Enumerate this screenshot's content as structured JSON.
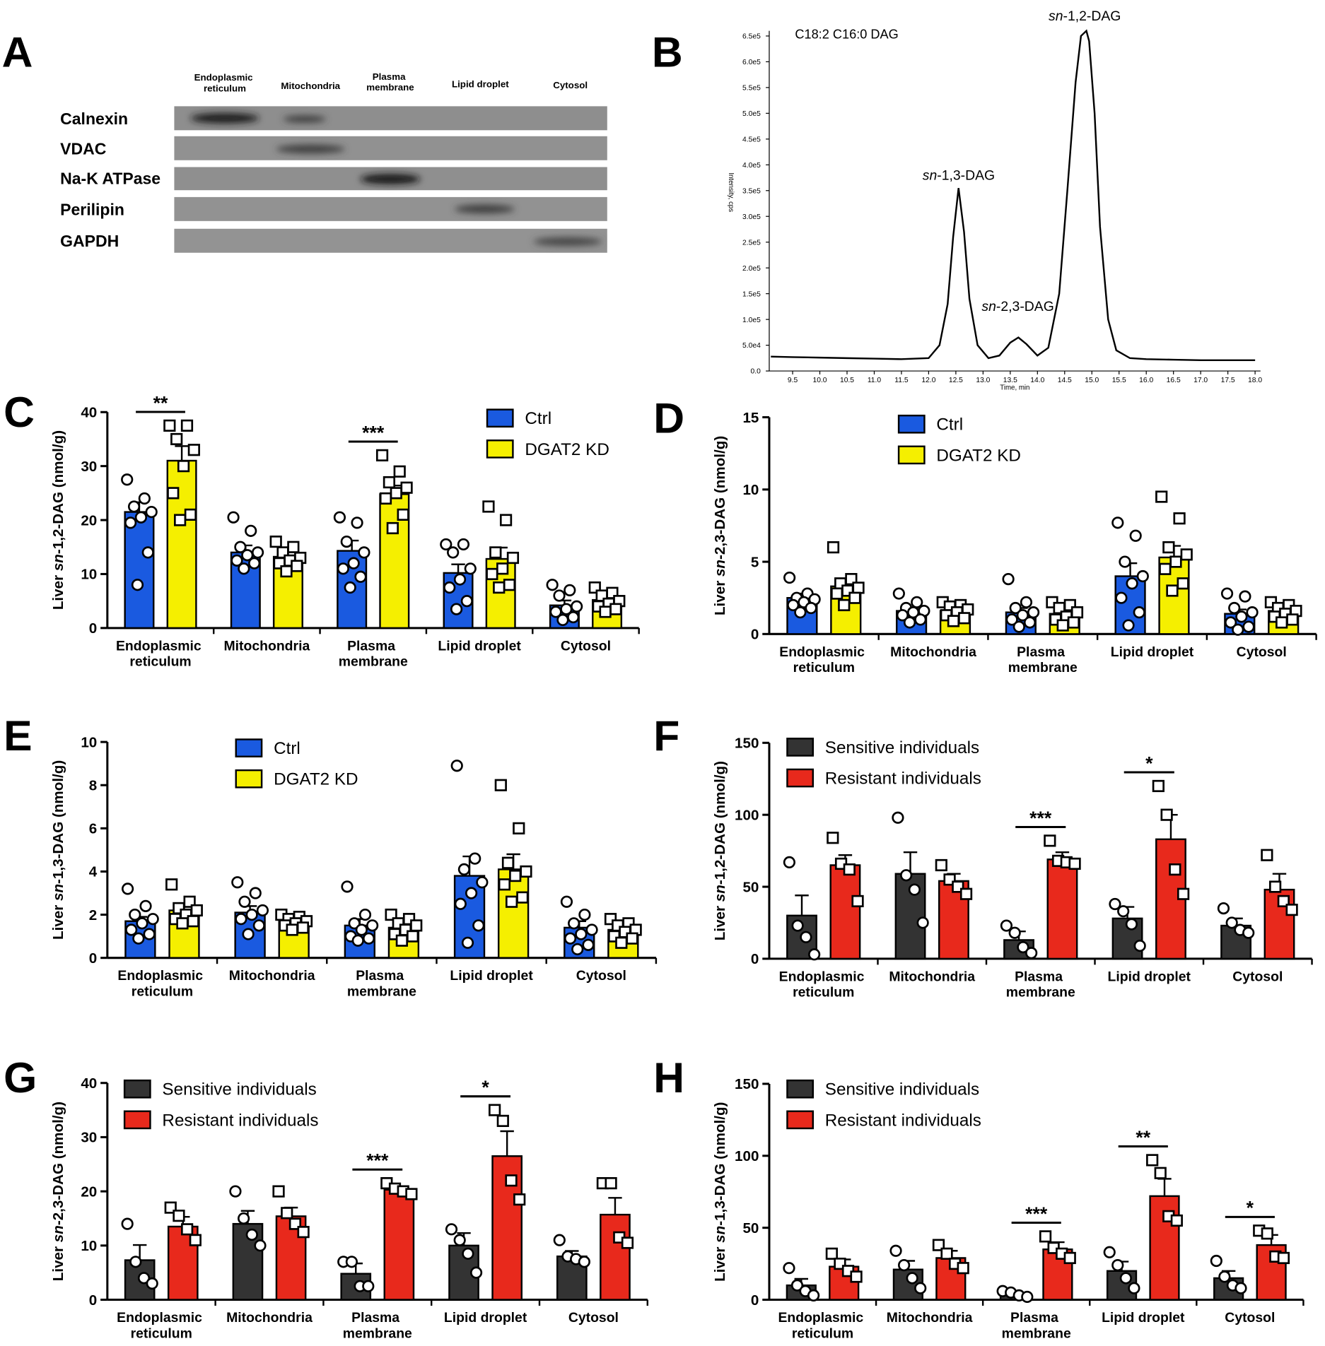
{
  "blot": {
    "panel": "A",
    "columns": [
      "Endoplasmic\nreticulum",
      "Mitochondria",
      "Plasma\nmembrane",
      "Lipid droplet",
      "Cytosol"
    ],
    "rows": [
      "Calnexin",
      "VDAC",
      "Na-K ATPase",
      "Perilipin",
      "GAPDH"
    ]
  },
  "chart_data": [
    {
      "panel": "B",
      "type": "line",
      "title": "C18:2 C16:0 DAG",
      "x_label": "Time, min",
      "y_label": "Intensity, cps",
      "annotations": [
        "sn-1,3-DAG",
        "sn-2,3-DAG",
        "sn-1,2-DAG"
      ],
      "color": "#000000",
      "x": [
        9.1,
        9.5,
        10.0,
        10.5,
        11.0,
        11.5,
        12.0,
        12.2,
        12.35,
        12.45,
        12.55,
        12.65,
        12.75,
        12.9,
        13.1,
        13.3,
        13.5,
        13.65,
        13.8,
        14.0,
        14.2,
        14.4,
        14.55,
        14.7,
        14.8,
        14.9,
        14.95,
        15.05,
        15.15,
        15.3,
        15.45,
        15.7,
        16.0,
        16.5,
        17.0,
        17.5,
        18.0
      ],
      "y": [
        28000,
        27000,
        26000,
        25000,
        24000,
        23000,
        25000,
        50000,
        130000,
        260000,
        355000,
        270000,
        140000,
        50000,
        25000,
        30000,
        55000,
        65000,
        52000,
        30000,
        45000,
        150000,
        350000,
        560000,
        650000,
        660000,
        640000,
        500000,
        280000,
        100000,
        40000,
        25000,
        23000,
        22000,
        21000,
        21000,
        21000
      ],
      "xlim": [
        9.07,
        18.1
      ],
      "ylim": [
        0,
        660000
      ],
      "xticks": [
        9.5,
        {
          "value": 10,
          "label": "10.0"
        },
        10.5,
        {
          "value": 11,
          "label": "11.0"
        },
        11.5,
        {
          "value": 12,
          "label": "12.0"
        },
        12.5,
        {
          "value": 13,
          "label": "13.0"
        },
        13.5,
        {
          "value": 14,
          "label": "14.0"
        },
        14.5,
        {
          "value": 15,
          "label": "15.0"
        },
        15.5,
        {
          "value": 16,
          "label": "16.0"
        },
        16.5,
        {
          "value": 17,
          "label": "17.0"
        },
        17.5,
        {
          "value": 18,
          "label": "18.0"
        }
      ],
      "yticks": [
        {
          "value": 0,
          "label": "0.0"
        },
        {
          "value": 50000,
          "label": "5.0e4"
        },
        {
          "value": 100000,
          "label": "1.0e5"
        },
        {
          "value": 150000,
          "label": "1.5e5"
        },
        {
          "value": 200000,
          "label": "2.0e5"
        },
        {
          "value": 250000,
          "label": "2.5e5"
        },
        {
          "value": 300000,
          "label": "3.0e5"
        },
        {
          "value": 350000,
          "label": "3.5e5"
        },
        {
          "value": 400000,
          "label": "4.0e5"
        },
        {
          "value": 450000,
          "label": "4.5e5"
        },
        {
          "value": 500000,
          "label": "5.0e5"
        },
        {
          "value": 550000,
          "label": "5.5e5"
        },
        {
          "value": 600000,
          "label": "6.0e5"
        },
        {
          "value": 650000,
          "label": "6.5e5"
        }
      ]
    },
    {
      "panel": "C",
      "type": "bar",
      "y_label": "Liver sn-1,2-DAG (nmol/g)",
      "categories": [
        "Endoplasmic\nreticulum",
        "Mitochondria",
        "Plasma\nmembrane",
        "Lipid droplet",
        "Cytosol"
      ],
      "ylim": [
        0,
        40
      ],
      "yticks": [
        0,
        10,
        20,
        30,
        40
      ],
      "significance": [
        "**",
        null,
        "***",
        null,
        null
      ],
      "series": [
        {
          "name": "Ctrl",
          "color": "#1a5ae0",
          "marker": "circle",
          "values": [
            21.5,
            14,
            14.3,
            10.2,
            4.2
          ],
          "errors": [
            1.8,
            1.3,
            1.9,
            1.6,
            0.9
          ],
          "points": [
            [
              27.5,
              24,
              22.5,
              21.5,
              20.5,
              19.5,
              14,
              8
            ],
            [
              20.5,
              18,
              15,
              14,
              13.5,
              12.5,
              12,
              11
            ],
            [
              20.5,
              19.5,
              16,
              14,
              12,
              11,
              9.5,
              7.5
            ],
            [
              15.5,
              15.5,
              14,
              11,
              9,
              7.5,
              5,
              3.5
            ],
            [
              8,
              7,
              6,
              4,
              3.5,
              3,
              2,
              1.5
            ]
          ]
        },
        {
          "name": "DGAT2 KD",
          "color": "#f5ef00",
          "marker": "square",
          "values": [
            31,
            13.2,
            24.8,
            12.8,
            5.2
          ],
          "errors": [
            2.7,
            0.9,
            1.6,
            2.1,
            0.8
          ],
          "points": [
            [
              37.5,
              37.5,
              35,
              33,
              30,
              25,
              21,
              20
            ],
            [
              16,
              15,
              14,
              13,
              12.5,
              12,
              11.5,
              10.5
            ],
            [
              32,
              29,
              27,
              26,
              25,
              24,
              21,
              18.5
            ],
            [
              22.5,
              20,
              14,
              13,
              11,
              10,
              8,
              7.5
            ],
            [
              7.5,
              6.5,
              6,
              5,
              4.5,
              4,
              3.5,
              3
            ]
          ]
        }
      ]
    },
    {
      "panel": "D",
      "type": "bar",
      "y_label": "Liver sn-2,3-DAG (nmol/g)",
      "categories": [
        "Endoplasmic\nreticulum",
        "Mitochondria",
        "Plasma\nmembrane",
        "Lipid droplet",
        "Cytosol"
      ],
      "ylim": [
        0,
        15
      ],
      "yticks": [
        0,
        5,
        10,
        15
      ],
      "series": [
        {
          "name": "Ctrl",
          "color": "#1a5ae0",
          "marker": "circle",
          "values": [
            2.5,
            1.6,
            1.5,
            4.0,
            1.4
          ],
          "errors": [
            0.3,
            0.2,
            0.3,
            0.9,
            0.3
          ],
          "points": [
            [
              3.9,
              2.8,
              2.5,
              2.4,
              2.2,
              2,
              1.8,
              1.5
            ],
            [
              2.8,
              2.2,
              1.8,
              1.6,
              1.5,
              1.3,
              1,
              0.8
            ],
            [
              3.8,
              2.2,
              1.8,
              1.5,
              1.3,
              1,
              0.8,
              0.5
            ],
            [
              7.7,
              6.8,
              5,
              4,
              3.5,
              2.5,
              1.5,
              0.6
            ],
            [
              2.8,
              2.6,
              1.8,
              1.5,
              1.2,
              0.8,
              0.5,
              0.3
            ]
          ]
        },
        {
          "name": "DGAT2 KD",
          "color": "#f5ef00",
          "marker": "square",
          "values": [
            3.3,
            1.6,
            1.4,
            5.3,
            1.6
          ],
          "errors": [
            0.4,
            0.2,
            0.2,
            0.8,
            0.2
          ],
          "points": [
            [
              6,
              3.8,
              3.5,
              3.2,
              3,
              2.8,
              2.5,
              2
            ],
            [
              2.2,
              2,
              1.9,
              1.7,
              1.5,
              1.3,
              1.1,
              0.9
            ],
            [
              2.2,
              2,
              1.8,
              1.5,
              1.2,
              1,
              0.8,
              0.6
            ],
            [
              9.5,
              8,
              6,
              5.5,
              5,
              4.5,
              3.5,
              3
            ],
            [
              2.2,
              2,
              1.8,
              1.6,
              1.4,
              1.2,
              1,
              0.8
            ]
          ]
        }
      ]
    },
    {
      "panel": "E",
      "type": "bar",
      "y_label": "Liver sn-1,3-DAG (nmol/g)",
      "categories": [
        "Endoplasmic\nreticulum",
        "Mitochondria",
        "Plasma\nmembrane",
        "Lipid droplet",
        "Cytosol"
      ],
      "ylim": [
        0,
        10
      ],
      "yticks": [
        0,
        2,
        4,
        6,
        8,
        10
      ],
      "series": [
        {
          "name": "Ctrl",
          "color": "#1a5ae0",
          "marker": "circle",
          "values": [
            1.7,
            2.1,
            1.5,
            3.8,
            1.4
          ],
          "errors": [
            0.2,
            0.3,
            0.3,
            0.9,
            0.3
          ],
          "points": [
            [
              3.2,
              2.4,
              2,
              1.8,
              1.6,
              1.3,
              1.1,
              0.9
            ],
            [
              3.5,
              3,
              2.6,
              2.2,
              2,
              1.8,
              1.5,
              1.1
            ],
            [
              3.3,
              2,
              1.6,
              1.5,
              1.3,
              1,
              0.9,
              0.8
            ],
            [
              8.9,
              4.6,
              4.1,
              3.5,
              3,
              2.5,
              1.5,
              0.7
            ],
            [
              2.6,
              2,
              1.6,
              1.3,
              1.1,
              0.9,
              0.6,
              0.4
            ]
          ]
        },
        {
          "name": "DGAT2 KD",
          "color": "#f5ef00",
          "marker": "square",
          "values": [
            2.2,
            1.7,
            1.4,
            4.1,
            1.3
          ],
          "errors": [
            0.3,
            0.2,
            0.2,
            0.7,
            0.2
          ],
          "points": [
            [
              3.4,
              2.6,
              2.3,
              2.2,
              2,
              1.8,
              1.7,
              1.6
            ],
            [
              2,
              1.9,
              1.8,
              1.7,
              1.6,
              1.5,
              1.4,
              1.3
            ],
            [
              2,
              1.8,
              1.6,
              1.5,
              1.3,
              1.1,
              1,
              0.8
            ],
            [
              8,
              6,
              4.4,
              4,
              3.8,
              3.4,
              2.8,
              2.6
            ],
            [
              1.8,
              1.6,
              1.5,
              1.3,
              1.2,
              1,
              0.9,
              0.7
            ]
          ]
        }
      ]
    },
    {
      "panel": "F",
      "type": "bar",
      "y_label": "Liver sn-1,2-DAG (nmol/g)",
      "categories": [
        "Endoplasmic\nreticulum",
        "Mitochondria",
        "Plasma\nmembrane",
        "Lipid droplet",
        "Cytosol"
      ],
      "ylim": [
        0,
        150
      ],
      "yticks": [
        0,
        50,
        100,
        150
      ],
      "significance": [
        null,
        null,
        "***",
        "*",
        null
      ],
      "series": [
        {
          "name": "Sensitive individuals",
          "color": "#333333",
          "marker": "circle",
          "values": [
            30,
            59,
            13,
            28,
            23
          ],
          "errors": [
            14,
            15,
            6,
            8,
            5
          ],
          "points": [
            [
              67,
              23,
              15,
              3
            ],
            [
              98,
              58,
              48,
              25
            ],
            [
              23,
              18,
              8,
              4
            ],
            [
              38,
              33,
              24,
              9
            ],
            [
              35,
              25,
              20,
              18
            ]
          ]
        },
        {
          "name": "Resistant individuals",
          "color": "#e8291c",
          "marker": "square",
          "values": [
            65,
            54,
            69,
            83,
            48
          ],
          "errors": [
            7,
            5,
            5,
            17,
            11
          ],
          "points": [
            [
              84,
              66,
              62,
              40
            ],
            [
              65,
              55,
              50,
              45
            ],
            [
              82,
              68,
              67,
              66
            ],
            [
              120,
              100,
              62,
              45
            ],
            [
              72,
              50,
              40,
              34
            ]
          ]
        }
      ]
    },
    {
      "panel": "G",
      "type": "bar",
      "y_label": "Liver sn-2,3-DAG (nmol/g)",
      "categories": [
        "Endoplasmic\nreticulum",
        "Mitochondria",
        "Plasma\nmembrane",
        "Lipid droplet",
        "Cytosol"
      ],
      "ylim": [
        0,
        40
      ],
      "yticks": [
        0,
        10,
        20,
        30,
        40
      ],
      "significance": [
        null,
        null,
        "***",
        "*",
        null
      ],
      "series": [
        {
          "name": "Sensitive individuals",
          "color": "#333333",
          "marker": "circle",
          "values": [
            7.3,
            14,
            4.8,
            10,
            8
          ],
          "errors": [
            2.8,
            2.4,
            1.9,
            2.3,
            1
          ],
          "points": [
            [
              14,
              7,
              4,
              3
            ],
            [
              20,
              15,
              12,
              10
            ],
            [
              7,
              7,
              2.5,
              2.5
            ],
            [
              13,
              11,
              8.5,
              5
            ],
            [
              11,
              8,
              7.5,
              7
            ]
          ]
        },
        {
          "name": "Resistant individuals",
          "color": "#e8291c",
          "marker": "square",
          "values": [
            13.5,
            15.4,
            20.3,
            26.5,
            15.7
          ],
          "errors": [
            1.8,
            1.6,
            0.6,
            4.6,
            3.1
          ],
          "points": [
            [
              17,
              15.5,
              13,
              11
            ],
            [
              20,
              16,
              14,
              12.5
            ],
            [
              21.5,
              20.5,
              20,
              19.5
            ],
            [
              35,
              33,
              22,
              18.5
            ],
            [
              21.5,
              21.5,
              11.5,
              10.5
            ]
          ]
        }
      ]
    },
    {
      "panel": "H",
      "type": "bar",
      "y_label": "Liver sn-1,3-DAG (nmol/g)",
      "categories": [
        "Endoplasmic\nreticulum",
        "Mitochondria",
        "Plasma\nmembrane",
        "Lipid droplet",
        "Cytosol"
      ],
      "ylim": [
        0,
        150
      ],
      "yticks": [
        0,
        50,
        100,
        150
      ],
      "significance": [
        null,
        null,
        "***",
        "**",
        "*"
      ],
      "series": [
        {
          "name": "Sensitive individuals",
          "color": "#333333",
          "marker": "circle",
          "values": [
            10,
            21,
            3.7,
            20,
            15
          ],
          "errors": [
            4.5,
            6,
            1.2,
            6.5,
            5
          ],
          "points": [
            [
              22,
              10,
              6,
              3
            ],
            [
              34,
              24,
              15,
              8
            ],
            [
              6,
              5,
              3,
              2
            ],
            [
              33,
              24,
              15,
              8
            ],
            [
              27,
              16,
              10,
              8
            ]
          ]
        },
        {
          "name": "Resistant individuals",
          "color": "#e8291c",
          "marker": "square",
          "values": [
            23,
            29,
            35,
            72,
            38
          ],
          "errors": [
            5,
            5,
            5,
            12,
            7
          ],
          "points": [
            [
              32,
              25,
              20,
              16
            ],
            [
              38,
              32,
              25,
              22
            ],
            [
              44,
              36,
              32,
              29
            ],
            [
              97,
              88,
              58,
              55
            ],
            [
              48,
              46,
              30,
              29
            ]
          ]
        }
      ]
    }
  ]
}
